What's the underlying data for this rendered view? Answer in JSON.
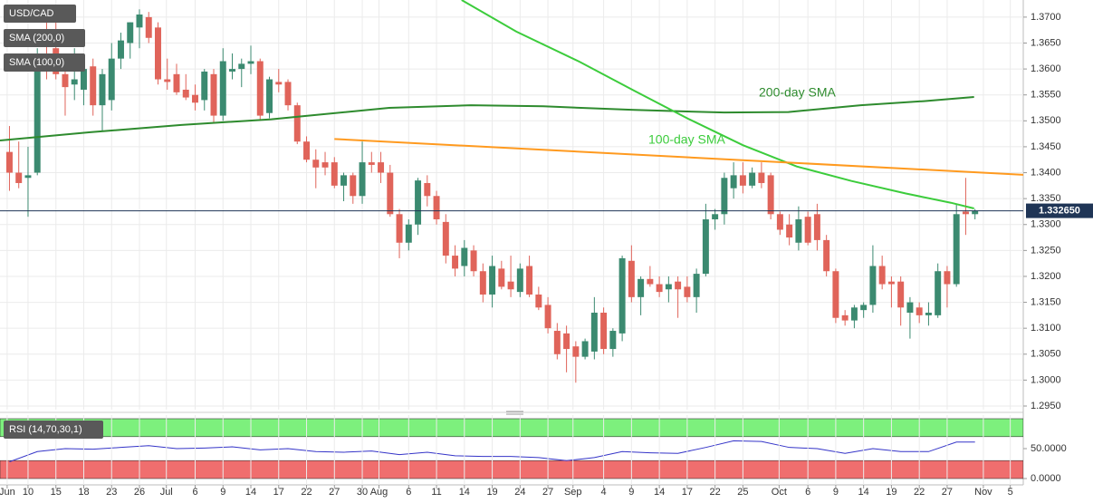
{
  "chart_data": [
    {
      "type": "candlestick",
      "title": "USD/CAD",
      "x": [
        -2,
        -1,
        0,
        1,
        2,
        3,
        4,
        5,
        6,
        7,
        8,
        9,
        10,
        11,
        12,
        13,
        14,
        15,
        16,
        17,
        18,
        19,
        20,
        21,
        22,
        23,
        24,
        25,
        26,
        27,
        28,
        29,
        30,
        31,
        32,
        33,
        34,
        35,
        36,
        37,
        38,
        39,
        40,
        41,
        42,
        43,
        44,
        45,
        46,
        47,
        48,
        49,
        50,
        51,
        52,
        53,
        54,
        55,
        56,
        57,
        58,
        59,
        60,
        61,
        62,
        63,
        64,
        65,
        66,
        67,
        68,
        69,
        70,
        71,
        72,
        73,
        74,
        75,
        76,
        77,
        78,
        79,
        80,
        81,
        82,
        83,
        84,
        85,
        86,
        87,
        88,
        89,
        90,
        91,
        92,
        93,
        94,
        95,
        96,
        97,
        98,
        99,
        100,
        101,
        102
      ],
      "open": [
        1.344,
        1.34,
        1.339,
        1.34,
        1.362,
        1.364,
        1.359,
        1.357,
        1.356,
        1.3605,
        1.353,
        1.354,
        1.362,
        1.365,
        1.368,
        1.37,
        1.368,
        1.358,
        1.359,
        1.356,
        1.355,
        1.354,
        1.359,
        1.351,
        1.3595,
        1.36,
        1.361,
        1.3615,
        1.3515,
        1.3575,
        1.3575,
        1.353,
        1.346,
        1.3425,
        1.342,
        1.342,
        1.3375,
        1.3395,
        1.3355,
        1.342,
        1.342,
        1.34,
        1.332,
        1.3265,
        1.33,
        1.338,
        1.3355,
        1.3305,
        1.324,
        1.322,
        1.325,
        1.321,
        1.3165,
        1.3215,
        1.319,
        1.317,
        1.322,
        1.3165,
        1.3145,
        1.3095,
        1.309,
        1.3065,
        1.3045,
        1.3055,
        1.313,
        1.306,
        1.309,
        1.323,
        1.316,
        1.3195,
        1.3185,
        1.3175,
        1.319,
        1.318,
        1.316,
        1.3205,
        1.331,
        1.332,
        1.337,
        1.3395,
        1.3375,
        1.34,
        1.3395,
        1.332,
        1.33,
        1.3265,
        1.3315,
        1.332,
        1.327,
        1.321,
        1.3125,
        1.3115,
        1.3135,
        1.3145,
        1.322,
        1.319,
        1.319,
        1.313,
        1.314,
        1.3125,
        1.3125,
        1.321,
        1.3185,
        1.3325,
        1.332
      ],
      "high": [
        1.349,
        1.346,
        1.345,
        1.364,
        1.369,
        1.369,
        1.362,
        1.364,
        1.362,
        1.362,
        1.36,
        1.365,
        1.367,
        1.369,
        1.3715,
        1.371,
        1.369,
        1.362,
        1.361,
        1.359,
        1.357,
        1.36,
        1.36,
        1.364,
        1.363,
        1.362,
        1.3645,
        1.362,
        1.3585,
        1.36,
        1.358,
        1.3535,
        1.347,
        1.3445,
        1.344,
        1.343,
        1.34,
        1.34,
        1.346,
        1.344,
        1.344,
        1.3415,
        1.333,
        1.331,
        1.339,
        1.3395,
        1.3365,
        1.332,
        1.326,
        1.327,
        1.326,
        1.3225,
        1.324,
        1.323,
        1.324,
        1.3225,
        1.324,
        1.318,
        1.316,
        1.311,
        1.3105,
        1.3075,
        1.308,
        1.316,
        1.314,
        1.31,
        1.324,
        1.326,
        1.32,
        1.322,
        1.32,
        1.32,
        1.32,
        1.32,
        1.3215,
        1.334,
        1.333,
        1.34,
        1.342,
        1.342,
        1.341,
        1.342,
        1.34,
        1.3325,
        1.332,
        1.3335,
        1.3325,
        1.334,
        1.328,
        1.3215,
        1.3135,
        1.3145,
        1.315,
        1.326,
        1.324,
        1.32,
        1.32,
        1.316,
        1.315,
        1.315,
        1.3225,
        1.322,
        1.334,
        1.339,
        1.333
      ],
      "low": [
        1.3365,
        1.337,
        1.3315,
        1.3395,
        1.358,
        1.358,
        1.351,
        1.354,
        1.353,
        1.351,
        1.348,
        1.352,
        1.36,
        1.362,
        1.364,
        1.365,
        1.357,
        1.356,
        1.355,
        1.354,
        1.352,
        1.352,
        1.3495,
        1.35,
        1.358,
        1.3565,
        1.359,
        1.35,
        1.3505,
        1.3555,
        1.352,
        1.3455,
        1.342,
        1.337,
        1.3395,
        1.337,
        1.3345,
        1.334,
        1.334,
        1.34,
        1.338,
        1.3315,
        1.3235,
        1.325,
        1.328,
        1.3335,
        1.33,
        1.3225,
        1.32,
        1.32,
        1.32,
        1.315,
        1.314,
        1.3175,
        1.316,
        1.316,
        1.316,
        1.3135,
        1.309,
        1.304,
        1.3015,
        1.2995,
        1.304,
        1.304,
        1.305,
        1.3045,
        1.3075,
        1.315,
        1.3125,
        1.318,
        1.316,
        1.315,
        1.312,
        1.315,
        1.313,
        1.32,
        1.329,
        1.33,
        1.335,
        1.336,
        1.337,
        1.337,
        1.331,
        1.328,
        1.326,
        1.325,
        1.326,
        1.325,
        1.32,
        1.311,
        1.3105,
        1.31,
        1.312,
        1.313,
        1.3175,
        1.314,
        1.3105,
        1.308,
        1.311,
        1.3105,
        1.312,
        1.314,
        1.318,
        1.328,
        1.331
      ],
      "close": [
        1.34,
        1.338,
        1.3395,
        1.362,
        1.361,
        1.359,
        1.3565,
        1.358,
        1.36,
        1.353,
        1.359,
        1.362,
        1.3655,
        1.369,
        1.3705,
        1.366,
        1.358,
        1.3575,
        1.3555,
        1.3545,
        1.3535,
        1.3595,
        1.351,
        1.3615,
        1.36,
        1.361,
        1.3615,
        1.351,
        1.358,
        1.357,
        1.353,
        1.346,
        1.3425,
        1.341,
        1.341,
        1.3375,
        1.3395,
        1.3355,
        1.342,
        1.3415,
        1.34,
        1.332,
        1.3265,
        1.33,
        1.3385,
        1.3355,
        1.331,
        1.324,
        1.3215,
        1.3255,
        1.321,
        1.3165,
        1.322,
        1.318,
        1.3175,
        1.3215,
        1.3165,
        1.314,
        1.31,
        1.305,
        1.306,
        1.3045,
        1.3075,
        1.313,
        1.306,
        1.3095,
        1.3235,
        1.316,
        1.3195,
        1.3185,
        1.317,
        1.3185,
        1.3175,
        1.316,
        1.3205,
        1.331,
        1.332,
        1.339,
        1.3395,
        1.3375,
        1.34,
        1.338,
        1.332,
        1.329,
        1.3275,
        1.331,
        1.3265,
        1.327,
        1.321,
        1.312,
        1.3115,
        1.314,
        1.3145,
        1.322,
        1.3185,
        1.3185,
        1.314,
        1.315,
        1.3125,
        1.313,
        1.321,
        1.3185,
        1.332,
        1.332,
        1.33265
      ],
      "up_color": "#3b8a70",
      "down_color": "#e0645a",
      "overlays": [
        {
          "name": "SMA (200,0)",
          "color": "#2e8b2e",
          "x": [
            -3.02,
            6.7,
            16.5,
            26.2,
            38.9,
            47.7,
            55.5,
            65.3,
            75,
            81.9,
            89.7,
            96.5,
            101.9
          ],
          "values": [
            1.3462,
            1.3478,
            1.3492,
            1.3503,
            1.3525,
            1.353,
            1.3528,
            1.3521,
            1.3516,
            1.3517,
            1.353,
            1.3538,
            1.3546
          ]
        },
        {
          "name": "SMA (100,0)",
          "color": "#3ccc3c",
          "x": [
            46.7,
            52.6,
            59.4,
            65.3,
            71.1,
            77,
            82.8,
            88.7,
            94.5,
            99.4,
            101.9
          ],
          "values": [
            1.3733,
            1.3672,
            1.3614,
            1.3558,
            1.3504,
            1.3453,
            1.3412,
            1.3384,
            1.336,
            1.3342,
            1.3331
          ]
        }
      ],
      "trendline": {
        "color": "#ff9a1f",
        "x": [
          33,
          107.2
        ],
        "values": [
          1.3465,
          1.3396
        ]
      },
      "annotations": [
        "200-day SMA",
        "100-day SMA"
      ],
      "last_price": {
        "value": 1.33265,
        "label": "1.332650"
      },
      "xlim": [
        -3.02,
        107.2
      ],
      "ylim": [
        1.2943,
        1.3733
      ],
      "xticks": [
        {
          "value": -2.25,
          "label": "Jun"
        },
        {
          "value": 0,
          "label": "10"
        },
        {
          "value": 3,
          "label": "15"
        },
        {
          "value": 6,
          "label": "18"
        },
        {
          "value": 9,
          "label": "23"
        },
        {
          "value": 12,
          "label": "26"
        },
        {
          "value": 14.9,
          "label": "Jul"
        },
        {
          "value": 18,
          "label": "6"
        },
        {
          "value": 21,
          "label": "9"
        },
        {
          "value": 24,
          "label": "14"
        },
        {
          "value": 27,
          "label": "17"
        },
        {
          "value": 30,
          "label": "22"
        },
        {
          "value": 33,
          "label": "27"
        },
        {
          "value": 36,
          "label": "30"
        },
        {
          "value": 37.8,
          "label": "Aug"
        },
        {
          "value": 41,
          "label": "6"
        },
        {
          "value": 44,
          "label": "11"
        },
        {
          "value": 47,
          "label": "14"
        },
        {
          "value": 50,
          "label": "19"
        },
        {
          "value": 53,
          "label": "24"
        },
        {
          "value": 56,
          "label": "27"
        },
        {
          "value": 58.7,
          "label": "Sep"
        },
        {
          "value": 62,
          "label": "4"
        },
        {
          "value": 65,
          "label": "9"
        },
        {
          "value": 68,
          "label": "14"
        },
        {
          "value": 71,
          "label": "17"
        },
        {
          "value": 74,
          "label": "22"
        },
        {
          "value": 77,
          "label": "25"
        },
        {
          "value": 80.9,
          "label": "Oct"
        },
        {
          "value": 84,
          "label": "6"
        },
        {
          "value": 87,
          "label": "9"
        },
        {
          "value": 90,
          "label": "14"
        },
        {
          "value": 93,
          "label": "19"
        },
        {
          "value": 96,
          "label": "22"
        },
        {
          "value": 99,
          "label": "27"
        },
        {
          "value": 102.9,
          "label": "Nov"
        },
        {
          "value": 105.8,
          "label": "5"
        }
      ],
      "yticks": [
        {
          "value": 1.295,
          "label": "1.2950"
        },
        {
          "value": 1.3,
          "label": "1.3000"
        },
        {
          "value": 1.305,
          "label": "1.3050"
        },
        {
          "value": 1.31,
          "label": "1.3100"
        },
        {
          "value": 1.315,
          "label": "1.3150"
        },
        {
          "value": 1.32,
          "label": "1.3200"
        },
        {
          "value": 1.325,
          "label": "1.3250"
        },
        {
          "value": 1.33,
          "label": "1.3300"
        },
        {
          "value": 1.335,
          "label": "1.3350"
        },
        {
          "value": 1.34,
          "label": "1.3400"
        },
        {
          "value": 1.345,
          "label": "1.3450"
        },
        {
          "value": 1.35,
          "label": "1.3500"
        },
        {
          "value": 1.355,
          "label": "1.3550"
        },
        {
          "value": 1.36,
          "label": "1.3600"
        },
        {
          "value": 1.365,
          "label": "1.3650"
        },
        {
          "value": 1.37,
          "label": "1.3700"
        }
      ],
      "grid": true
    },
    {
      "type": "line",
      "title": "RSI (14,70,30,1)",
      "color": "#3434c8",
      "x": [
        -2,
        1,
        4,
        7,
        10,
        13,
        16,
        19,
        22,
        25,
        28,
        31,
        34,
        37,
        40,
        43,
        46,
        49,
        52,
        55,
        58,
        61,
        64,
        67,
        70,
        73,
        76,
        79,
        82,
        85,
        88,
        91,
        94,
        97,
        100,
        102
      ],
      "values": [
        28,
        45,
        50,
        49,
        52,
        55,
        50,
        51,
        53,
        48,
        50,
        45,
        44,
        46,
        40,
        44,
        38,
        37,
        37,
        35,
        30,
        35,
        45,
        43,
        42,
        52,
        63,
        62,
        52,
        50,
        42,
        50,
        45,
        45,
        61,
        61
      ],
      "ylim": [
        0,
        100
      ],
      "yticks": [
        {
          "value": 50,
          "label": "50.0000"
        },
        {
          "value": 0,
          "label": "0.0000"
        }
      ],
      "overbought": 70,
      "oversold": 30,
      "overbought_color": "#7df07d",
      "oversold_color": "#f06e6e"
    }
  ]
}
